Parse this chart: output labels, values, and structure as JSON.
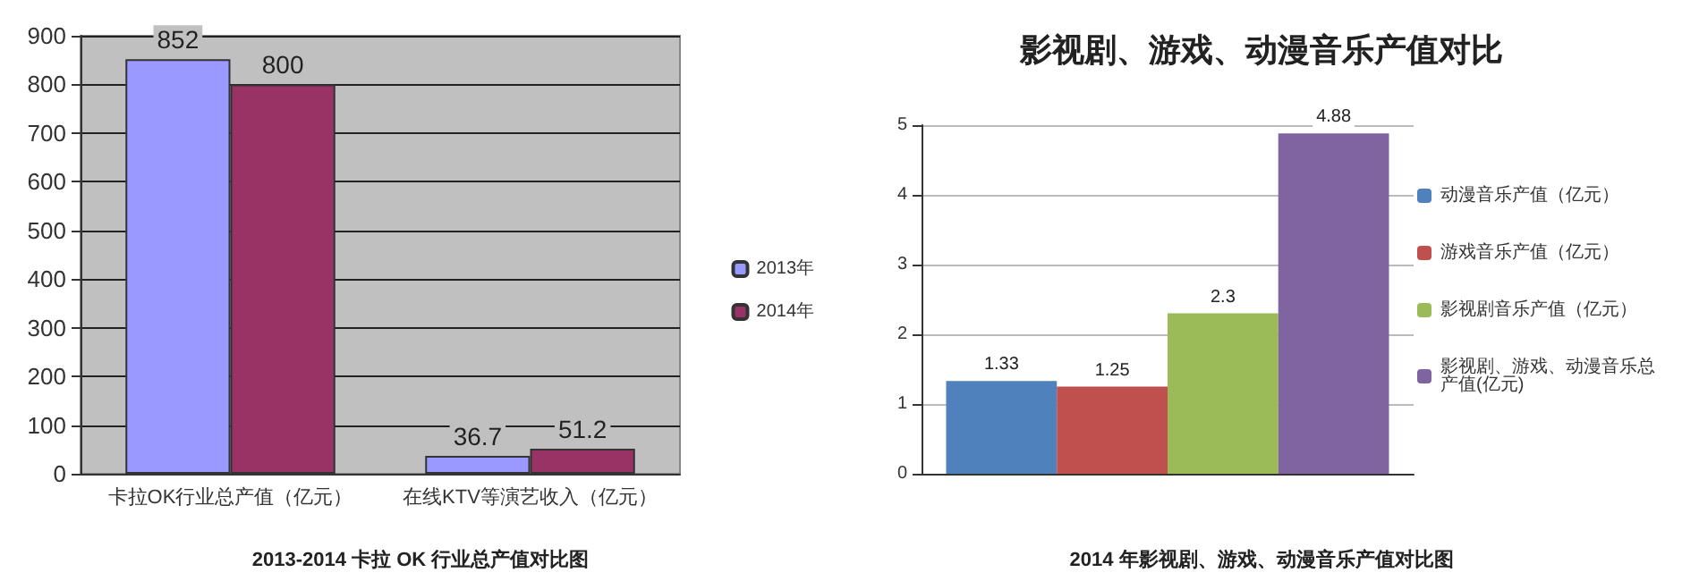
{
  "chart_data": [
    {
      "type": "bar",
      "categories": [
        "卡拉OK行业总产值（亿元）",
        "在线KTV等演艺收入（亿元）"
      ],
      "series": [
        {
          "name": "2013年",
          "color": "#9999ff",
          "values": [
            852,
            36.7
          ]
        },
        {
          "name": "2014年",
          "color": "#993366",
          "values": [
            800,
            51.2
          ]
        }
      ],
      "ylim": [
        0,
        900
      ],
      "yticks": [
        0,
        100,
        200,
        300,
        400,
        500,
        600,
        700,
        800,
        900
      ],
      "grid": "y",
      "legend": "right",
      "data_labels": true,
      "annotations": [
        "2013-2014 卡拉 OK 行业总产值对比图"
      ]
    },
    {
      "type": "bar",
      "title": "影视剧、游戏、动漫音乐产值对比",
      "categories": [
        null
      ],
      "series": [
        {
          "name": "动漫音乐产值（亿元）",
          "color": "#4f81bd",
          "values": [
            1.33
          ]
        },
        {
          "name": "游戏音乐产值（亿元）",
          "color": "#c0504d",
          "values": [
            1.25
          ]
        },
        {
          "name": "影视剧音乐产值（亿元）",
          "color": "#9bbb59",
          "values": [
            2.3
          ]
        },
        {
          "name": "影视剧、游戏、动漫音乐总产值(亿元)",
          "color": "#8064a2",
          "values": [
            4.88
          ]
        }
      ],
      "ylim": [
        0,
        5
      ],
      "yticks": [
        0,
        1,
        2,
        3,
        4,
        5
      ],
      "grid": "y",
      "legend": "right",
      "data_labels": true,
      "annotations": [
        "2014 年影视剧、游戏、动漫音乐产值对比图"
      ]
    }
  ]
}
